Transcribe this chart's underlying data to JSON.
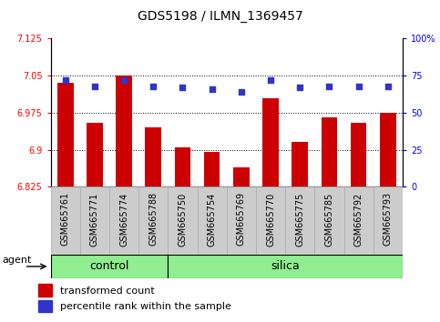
{
  "title": "GDS5198 / ILMN_1369457",
  "samples": [
    "GSM665761",
    "GSM665771",
    "GSM665774",
    "GSM665788",
    "GSM665750",
    "GSM665754",
    "GSM665769",
    "GSM665770",
    "GSM665775",
    "GSM665785",
    "GSM665792",
    "GSM665793"
  ],
  "bar_values": [
    7.035,
    6.955,
    7.05,
    6.945,
    6.905,
    6.895,
    6.865,
    7.005,
    6.915,
    6.965,
    6.955,
    6.975
  ],
  "dot_values": [
    72,
    68,
    72,
    68,
    67,
    66,
    64,
    72,
    67,
    68,
    68,
    68
  ],
  "bar_bottom": 6.825,
  "ylim_left": [
    6.825,
    7.125
  ],
  "ylim_right": [
    0,
    100
  ],
  "yticks_left": [
    6.825,
    6.9,
    6.975,
    7.05,
    7.125
  ],
  "yticks_right": [
    0,
    25,
    50,
    75,
    100
  ],
  "ytick_labels_left": [
    "6.825",
    "6.9",
    "6.975",
    "7.05",
    "7.125"
  ],
  "ytick_labels_right": [
    "0",
    "25",
    "50",
    "75",
    "100%"
  ],
  "hlines": [
    7.05,
    6.975,
    6.9
  ],
  "bar_color": "#cc0000",
  "dot_color": "#3333cc",
  "control_color": "#90ee90",
  "silica_color": "#90ee90",
  "n_control": 4,
  "n_silica": 8,
  "legend_bar_label": "transformed count",
  "legend_dot_label": "percentile rank within the sample",
  "title_fontsize": 10,
  "tick_fontsize": 7,
  "label_fontsize": 8,
  "xlabel_fontsize": 7,
  "group_fontsize": 9
}
